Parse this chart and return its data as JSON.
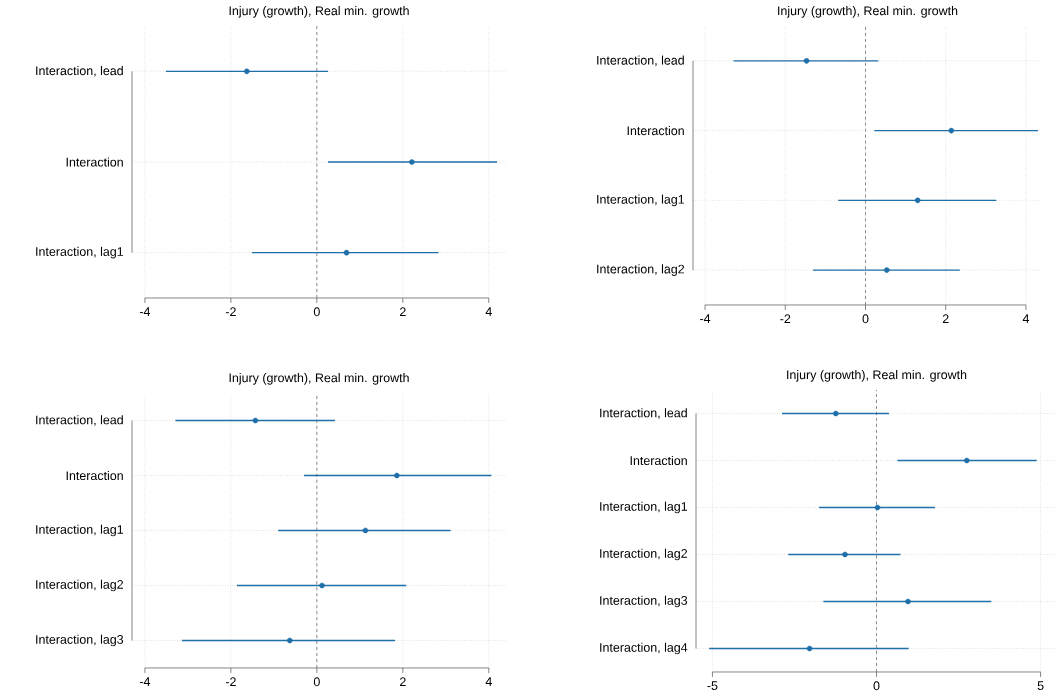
{
  "chart_data": [
    {
      "type": "scatter",
      "orientation": "horizontal",
      "title": "Injury (growth), Real min. growth",
      "categories": [
        "Interaction, lead",
        "Interaction",
        "Interaction, lag1"
      ],
      "values": [
        -1.63,
        2.21,
        0.69
      ],
      "errors": [
        [
          -3.51,
          0.26
        ],
        [
          0.26,
          4.19
        ],
        [
          -1.51,
          2.83
        ]
      ],
      "color": "#1f6fa8",
      "marker": "circle",
      "grid": true,
      "xlim": [
        -4.3,
        4.4
      ],
      "xticks": [
        -4,
        -2,
        0,
        2,
        4
      ],
      "ref_lines": [
        {
          "axis": "x",
          "value": 0,
          "line_style": "dashed",
          "color": "#808080"
        }
      ]
    },
    {
      "type": "scatter",
      "orientation": "horizontal",
      "title": "Injury (growth), Real min. growth",
      "categories": [
        "Interaction, lead",
        "Interaction",
        "Interaction, lag1",
        "Interaction, lag2"
      ],
      "values": [
        -1.47,
        2.14,
        1.3,
        0.53
      ],
      "errors": [
        [
          -3.29,
          0.32
        ],
        [
          0.22,
          4.3
        ],
        [
          -0.68,
          3.26
        ],
        [
          -1.31,
          2.35
        ]
      ],
      "color": "#1f6fa8",
      "marker": "circle",
      "grid": true,
      "xlim": [
        -4.3,
        4.4
      ],
      "xticks": [
        -4,
        -2,
        0,
        2,
        4
      ],
      "ref_lines": [
        {
          "axis": "x",
          "value": 0,
          "line_style": "dashed",
          "color": "#808080"
        }
      ]
    },
    {
      "type": "scatter",
      "orientation": "horizontal",
      "title": "Injury (growth), Real min. growth",
      "categories": [
        "Interaction, lead",
        "Interaction",
        "Interaction, lag1",
        "Interaction, lag2",
        "Interaction, lag3"
      ],
      "values": [
        -1.43,
        1.86,
        1.13,
        0.12,
        -0.63
      ],
      "errors": [
        [
          -3.29,
          0.42
        ],
        [
          -0.3,
          4.06
        ],
        [
          -0.9,
          3.11
        ],
        [
          -1.86,
          2.08
        ],
        [
          -3.14,
          1.82
        ]
      ],
      "color": "#1f6fa8",
      "marker": "circle",
      "grid": true,
      "xlim": [
        -4.3,
        4.4
      ],
      "xticks": [
        -4,
        -2,
        0,
        2,
        4
      ],
      "ref_lines": [
        {
          "axis": "x",
          "value": 0,
          "line_style": "dashed",
          "color": "#808080"
        }
      ]
    },
    {
      "type": "scatter",
      "orientation": "horizontal",
      "title": "Injury (growth), Real min. growth",
      "categories": [
        "Interaction, lead",
        "Interaction",
        "Interaction, lag1",
        "Interaction, lag2",
        "Interaction, lag3",
        "Interaction, lag4"
      ],
      "values": [
        -1.24,
        2.75,
        0.03,
        -0.96,
        0.96,
        -2.04
      ],
      "errors": [
        [
          -2.88,
          0.38
        ],
        [
          0.64,
          4.88
        ],
        [
          -1.75,
          1.78
        ],
        [
          -2.69,
          0.73
        ],
        [
          -1.62,
          3.5
        ],
        [
          -5.1,
          0.98
        ]
      ],
      "color": "#1f6fa8",
      "marker": "circle",
      "grid": true,
      "xlim": [
        -5.5,
        5.5
      ],
      "xticks": [
        -5,
        0,
        5
      ],
      "ref_lines": [
        {
          "axis": "x",
          "value": 0,
          "line_style": "dashed",
          "color": "#808080"
        }
      ]
    }
  ]
}
